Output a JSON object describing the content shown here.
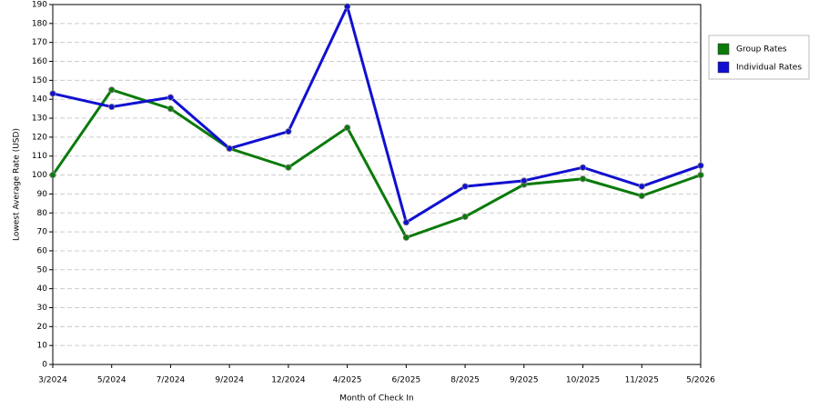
{
  "chart_data": {
    "type": "line",
    "x_label": "Month of Check In",
    "y_label": "Lowest Average Rate (USD)",
    "categories": [
      "3/2024",
      "5/2024",
      "7/2024",
      "9/2024",
      "12/2024",
      "4/2025",
      "6/2025",
      "8/2025",
      "9/2025",
      "10/2025",
      "11/2025",
      "5/2026"
    ],
    "series": [
      {
        "name": "Group Rates",
        "color": "#0a7a0a",
        "values": [
          100,
          145,
          135,
          114,
          104,
          125,
          67,
          78,
          95,
          98,
          89,
          100
        ]
      },
      {
        "name": "Individual Rates",
        "color": "#1010d0",
        "values": [
          143,
          136,
          141,
          114,
          123,
          189,
          75,
          94,
          97,
          104,
          94,
          105
        ]
      }
    ],
    "ylim": [
      0,
      190
    ],
    "yticks": [
      0,
      10,
      20,
      30,
      40,
      50,
      60,
      70,
      80,
      90,
      100,
      110,
      120,
      130,
      140,
      150,
      160,
      170,
      180,
      190
    ],
    "grid": true,
    "legend": "right"
  }
}
